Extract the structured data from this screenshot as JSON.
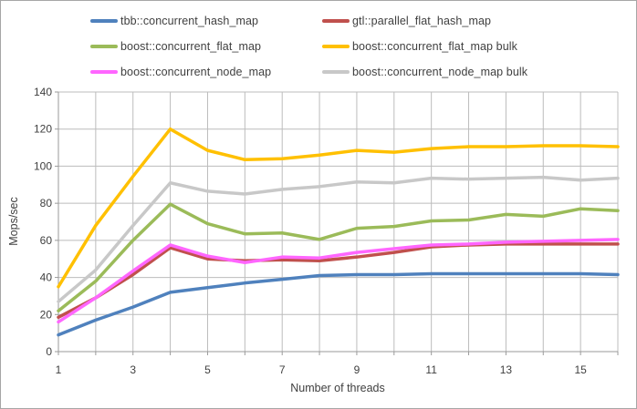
{
  "colors": {
    "background": "#ffffff",
    "frame_border": "#a6a6a6",
    "gridline": "#bcbcbc",
    "axis": "#9a9a9a",
    "text": "#3f3f3f"
  },
  "chart_data": {
    "type": "line",
    "title": "",
    "xlabel": "Number of threads",
    "ylabel": "Mops/sec",
    "x": [
      1,
      2,
      3,
      4,
      5,
      6,
      7,
      8,
      9,
      10,
      11,
      12,
      13,
      14,
      15,
      16
    ],
    "xlim": [
      1,
      16
    ],
    "ylim": [
      0,
      140
    ],
    "ytick_step": 20,
    "xtick_labels": [
      1,
      3,
      5,
      7,
      9,
      11,
      13,
      15
    ],
    "grid": "vertical every 1 thread, horizontal every 20 Mops/sec",
    "legend_position": "top, 2 columns, 3 rows",
    "series": [
      {
        "name": "tbb::concurrent_hash_map",
        "color": "#4f81bd",
        "values": [
          9,
          17,
          24,
          32,
          34.5,
          37,
          39,
          41,
          41.5,
          41.5,
          42,
          42,
          42,
          42,
          42,
          41.5
        ]
      },
      {
        "name": "gtl::parallel_flat_hash_map",
        "color": "#c0504d",
        "values": [
          18.5,
          29,
          41.5,
          56,
          50,
          49,
          49.5,
          49,
          51,
          53.5,
          56.5,
          57.5,
          58,
          58,
          58,
          58
        ]
      },
      {
        "name": "boost::concurrent_flat_map",
        "color": "#9bbb59",
        "values": [
          22,
          38,
          60,
          79.5,
          69,
          63.5,
          64,
          60.5,
          66.5,
          67.5,
          70.5,
          71,
          74,
          73,
          77,
          76
        ]
      },
      {
        "name": "boost::concurrent_flat_map bulk",
        "color": "#ffc000",
        "values": [
          35,
          68,
          94.5,
          120,
          108.5,
          103.5,
          104,
          106,
          108.5,
          107.5,
          109.5,
          110.5,
          110.5,
          111,
          111,
          110.5
        ]
      },
      {
        "name": "boost::concurrent_node_map",
        "color": "#ff66ff",
        "values": [
          16,
          29,
          43.5,
          57.5,
          51.5,
          48,
          51,
          50.5,
          53.5,
          55.5,
          57.5,
          58,
          59,
          59.5,
          60,
          60.5
        ]
      },
      {
        "name": "boost::concurrent_node_map bulk",
        "color": "#c8c8c8",
        "values": [
          27,
          44,
          68,
          91,
          86.5,
          85,
          87.5,
          89,
          91.5,
          91,
          93.5,
          93,
          93.5,
          94,
          92.5,
          93.5
        ]
      }
    ]
  }
}
